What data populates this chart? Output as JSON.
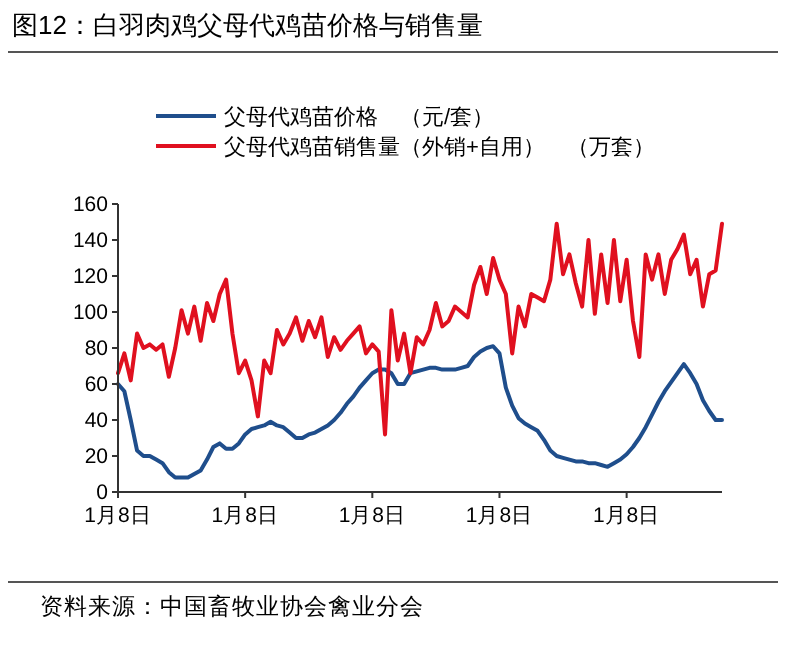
{
  "chart_data": {
    "type": "line",
    "title": "图12：白羽肉鸡父母代鸡苗价格与销售量",
    "annotations": [
      "资料来源：中国畜牧业协会禽业分会"
    ],
    "legend": "top",
    "grid": false,
    "line_style": "solid",
    "marker": "none",
    "categories": [
      "1月8日",
      null,
      null,
      null,
      null,
      null,
      null,
      null,
      null,
      null,
      null,
      null,
      null,
      null,
      null,
      null,
      null,
      null,
      null,
      null,
      "1月8日",
      null,
      null,
      null,
      null,
      null,
      null,
      null,
      null,
      null,
      null,
      null,
      null,
      null,
      null,
      null,
      null,
      null,
      null,
      null,
      "1月8日",
      null,
      null,
      null,
      null,
      null,
      null,
      null,
      null,
      null,
      null,
      null,
      null,
      null,
      null,
      null,
      null,
      null,
      null,
      null,
      "1月8日",
      null,
      null,
      null,
      null,
      null,
      null,
      null,
      null,
      null,
      null,
      null,
      null,
      null,
      null,
      null,
      null,
      null,
      null,
      null,
      "1月8日",
      null,
      null,
      null,
      null,
      null,
      null,
      null,
      null,
      null,
      null,
      null,
      null,
      null,
      null,
      null
    ],
    "ylim": [
      0,
      160
    ],
    "yticks": [
      0,
      20,
      40,
      60,
      80,
      100,
      120,
      140,
      160
    ],
    "series": [
      {
        "name": "父母代鸡苗价格　（元/套）",
        "color": "#1f4e8c",
        "values": [
          60,
          56,
          40,
          23,
          20,
          20,
          18,
          16,
          11,
          8,
          8,
          8,
          10,
          12,
          18,
          25,
          27,
          24,
          24,
          27,
          32,
          35,
          36,
          37,
          39,
          37,
          36,
          33,
          30,
          30,
          32,
          33,
          35,
          37,
          40,
          44,
          49,
          53,
          58,
          62,
          66,
          68,
          68,
          66,
          60,
          60,
          66,
          67,
          68,
          69,
          69,
          68,
          68,
          68,
          69,
          70,
          75,
          78,
          80,
          81,
          77,
          58,
          48,
          41,
          38,
          36,
          34,
          29,
          23,
          20,
          19,
          18,
          17,
          17,
          16,
          16,
          15,
          14,
          16,
          18,
          21,
          25,
          30,
          36,
          43,
          50,
          56,
          61,
          66,
          71,
          66,
          60,
          51,
          45,
          40,
          40
        ]
      },
      {
        "name": "父母代鸡苗销售量（外销+自用）　（万套）",
        "color": "#e0101f",
        "values": [
          66,
          77,
          62,
          88,
          80,
          82,
          79,
          82,
          64,
          80,
          101,
          88,
          103,
          84,
          105,
          95,
          110,
          118,
          88,
          66,
          73,
          62,
          42,
          73,
          66,
          90,
          82,
          88,
          97,
          84,
          95,
          86,
          97,
          75,
          86,
          79,
          84,
          88,
          92,
          77,
          82,
          78,
          32,
          101,
          73,
          88,
          66,
          86,
          82,
          90,
          105,
          92,
          95,
          103,
          100,
          97,
          115,
          125,
          110,
          130,
          118,
          110,
          77,
          103,
          92,
          110,
          108,
          106,
          118,
          149,
          121,
          132,
          116,
          103,
          140,
          99,
          132,
          105,
          140,
          106,
          129,
          95,
          75,
          132,
          118,
          132,
          110,
          129,
          135,
          143,
          121,
          129,
          103,
          121,
          123,
          149
        ]
      }
    ]
  }
}
